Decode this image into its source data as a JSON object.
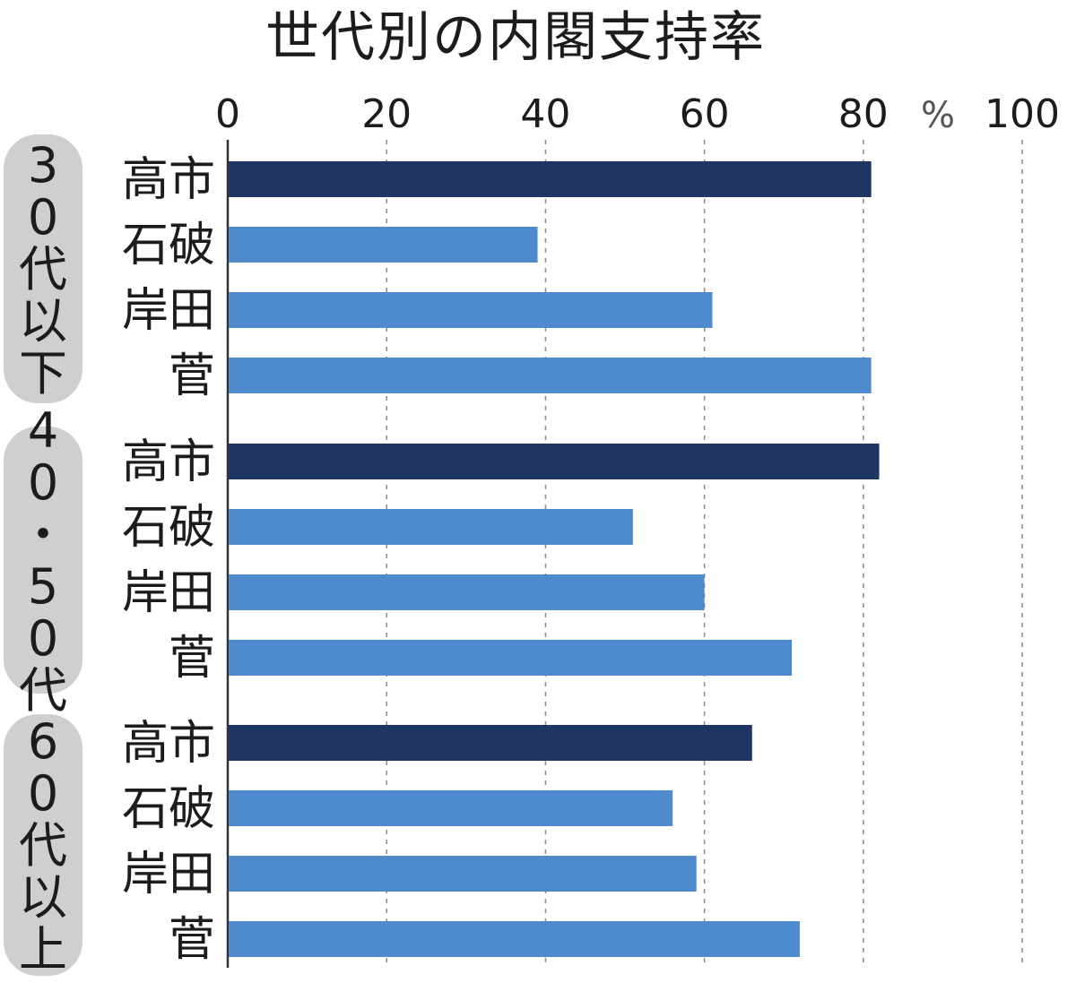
{
  "chart_data": {
    "type": "bar",
    "orientation": "horizontal",
    "title": "世代別の内閣支持率",
    "unit": "%",
    "xlim": [
      0,
      100
    ],
    "xticks": [
      0,
      20,
      40,
      60,
      80,
      100
    ],
    "grid": true,
    "groups": [
      {
        "label": "30代以下",
        "bars": [
          {
            "name": "高市",
            "value": 81
          },
          {
            "name": "石破",
            "value": 39
          },
          {
            "name": "岸田",
            "value": 61
          },
          {
            "name": "菅",
            "value": 81
          }
        ]
      },
      {
        "label": "40・50代",
        "bars": [
          {
            "name": "高市",
            "value": 82
          },
          {
            "name": "石破",
            "value": 51
          },
          {
            "name": "岸田",
            "value": 60
          },
          {
            "name": "菅",
            "value": 71
          }
        ]
      },
      {
        "label": "60代以上",
        "bars": [
          {
            "name": "高市",
            "value": 66
          },
          {
            "name": "石破",
            "value": 56
          },
          {
            "name": "岸田",
            "value": 59
          },
          {
            "name": "菅",
            "value": 72
          }
        ]
      }
    ],
    "colors": {
      "highlight": "#1f3563",
      "bar": "#4f8bcc",
      "group_bg": "#cfcfcf",
      "grid": "#8a8a8a",
      "axis": "#333333"
    }
  }
}
